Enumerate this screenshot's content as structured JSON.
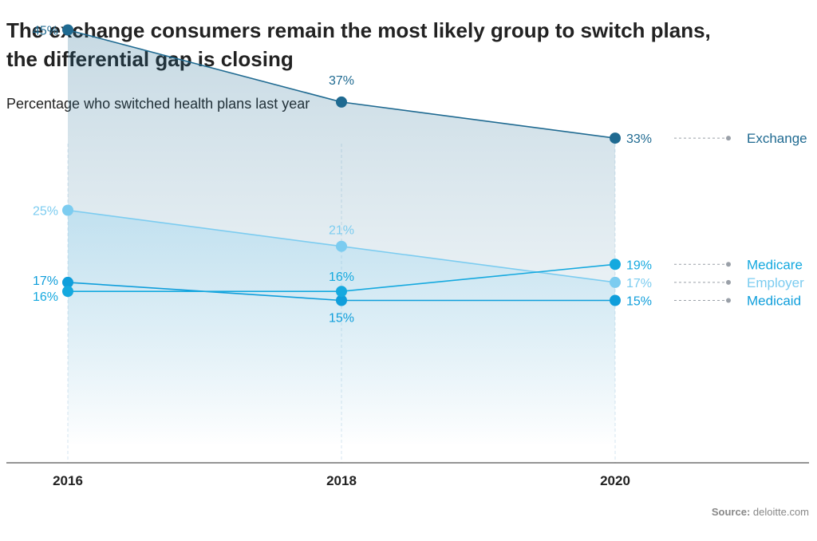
{
  "title_line1": "The exchange consumers remain the most likely group to switch plans,",
  "title_line2": "the differential gap is closing",
  "subtitle": "Percentage who switched health plans last year",
  "source_label": "Source:",
  "source_value": "deloitte.com",
  "chart_data": {
    "type": "line",
    "x": [
      "2016",
      "2018",
      "2020"
    ],
    "series": [
      {
        "name": "Exchange",
        "values": [
          45,
          37,
          33
        ],
        "labels": [
          "45%",
          "37%",
          "33%"
        ],
        "color": "#1f6a91"
      },
      {
        "name": "Medicare",
        "values": [
          16,
          16,
          19
        ],
        "labels": [
          "16%",
          "16%",
          "19%"
        ],
        "color": "#15a9df"
      },
      {
        "name": "Employer",
        "values": [
          25,
          21,
          17
        ],
        "labels": [
          "25%",
          "21%",
          "17%"
        ],
        "color": "#7cccf0"
      },
      {
        "name": "Medicaid",
        "values": [
          17,
          15,
          15
        ],
        "labels": [
          "17%",
          "15%",
          "15%"
        ],
        "color": "#0f9edb"
      }
    ]
  }
}
